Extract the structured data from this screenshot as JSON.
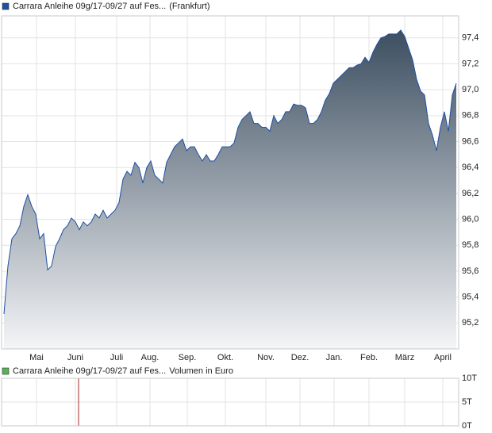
{
  "chart_data": [
    {
      "type": "area",
      "exchange": "(Frankfurt)",
      "series": [
        {
          "name": "Carrara Anleihe 09g/17-09/27 auf Fes...",
          "color": "#1f4fa3",
          "values": [
            95.27,
            95.64,
            95.85,
            95.89,
            95.95,
            96.1,
            96.19,
            96.1,
            96.04,
            95.85,
            95.89,
            95.61,
            95.64,
            95.79,
            95.85,
            95.92,
            95.95,
            96.01,
            95.98,
            95.92,
            95.98,
            95.95,
            95.98,
            96.04,
            96.01,
            96.07,
            96.01,
            96.04,
            96.07,
            96.13,
            96.31,
            96.37,
            96.34,
            96.44,
            96.4,
            96.28,
            96.4,
            96.45,
            96.34,
            96.31,
            96.28,
            96.44,
            96.5,
            96.56,
            96.59,
            96.62,
            96.53,
            96.56,
            96.56,
            96.5,
            96.45,
            96.5,
            96.45,
            96.45,
            96.5,
            96.56,
            96.56,
            96.56,
            96.59,
            96.71,
            96.77,
            96.8,
            96.83,
            96.74,
            96.74,
            96.71,
            96.71,
            96.68,
            96.8,
            96.74,
            96.77,
            96.83,
            96.83,
            96.89,
            96.88,
            96.88,
            96.86,
            96.74,
            96.74,
            96.77,
            96.83,
            96.92,
            96.97,
            97.05,
            97.08,
            97.11,
            97.14,
            97.17,
            97.17,
            97.19,
            97.2,
            97.25,
            97.21,
            97.29,
            97.35,
            97.4,
            97.41,
            97.43,
            97.43,
            97.43,
            97.46,
            97.41,
            97.32,
            97.23,
            97.08,
            96.99,
            96.96,
            96.74,
            96.65,
            96.53,
            96.71,
            96.83,
            96.68,
            96.96,
            97.05
          ]
        }
      ],
      "xlim": [
        -0.6,
        114.6
      ],
      "xticks": [
        {
          "value": 8.2,
          "label": "Mai"
        },
        {
          "value": 18,
          "label": "Juni"
        },
        {
          "value": 28.4,
          "label": "Juli"
        },
        {
          "value": 36.8,
          "label": "Aug."
        },
        {
          "value": 46.2,
          "label": "Sep."
        },
        {
          "value": 55.8,
          "label": "Okt."
        },
        {
          "value": 66,
          "label": "Nov."
        },
        {
          "value": 74.6,
          "label": "Dez."
        },
        {
          "value": 83.2,
          "label": "Jan."
        },
        {
          "value": 92,
          "label": "Feb."
        },
        {
          "value": 101,
          "label": "März"
        },
        {
          "value": 110.6,
          "label": "April"
        }
      ],
      "ylim": [
        95.0,
        97.57
      ],
      "yticks": [
        {
          "value": 95.2,
          "label": "95,2"
        },
        {
          "value": 95.4,
          "label": "95,4"
        },
        {
          "value": 95.6,
          "label": "95,6"
        },
        {
          "value": 95.8,
          "label": "95,8"
        },
        {
          "value": 96.0,
          "label": "96,0"
        },
        {
          "value": 96.2,
          "label": "96,2"
        },
        {
          "value": 96.4,
          "label": "96,4"
        },
        {
          "value": 96.6,
          "label": "96,6"
        },
        {
          "value": 96.8,
          "label": "96,8"
        },
        {
          "value": 97.0,
          "label": "97,0"
        },
        {
          "value": 97.2,
          "label": "97,2"
        },
        {
          "value": 97.4,
          "label": "97,4"
        }
      ],
      "grid": true
    },
    {
      "type": "bar",
      "unit_label": "Volumen in Euro",
      "x": [
        18.8
      ],
      "series": [
        {
          "name": "Carrara Anleihe 09g/17-09/27 auf Fes...",
          "color": "#56b356",
          "bar_color": "#a02828",
          "values": [
            10000
          ]
        }
      ],
      "xlim": [
        -0.6,
        114.6
      ],
      "ylim": [
        0,
        10000
      ],
      "yticks": [
        {
          "value": 0,
          "label": "0T"
        },
        {
          "value": 5000,
          "label": "5T"
        },
        {
          "value": 10000,
          "label": "10T"
        }
      ],
      "grid": true
    }
  ]
}
